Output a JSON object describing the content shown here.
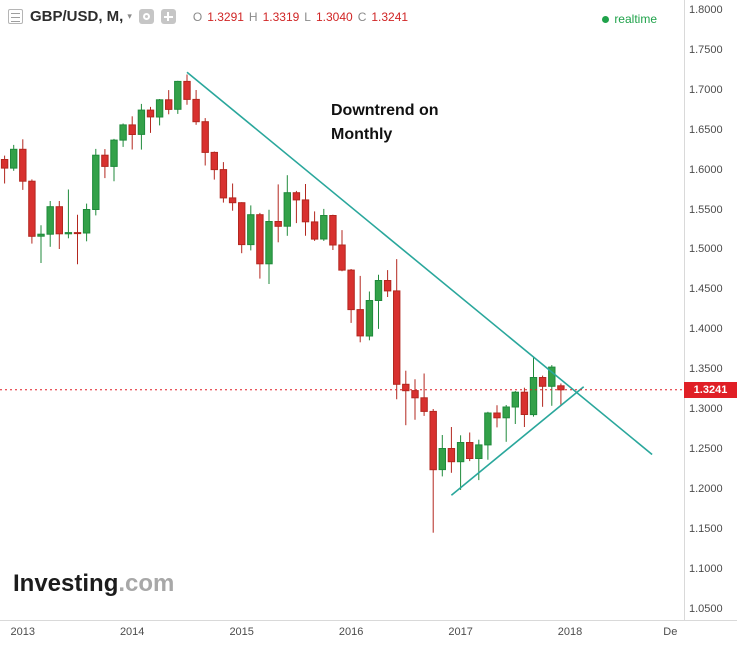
{
  "header": {
    "symbol_label": "GBP/USD, M,",
    "ohlc": [
      {
        "k": "O",
        "v": "1.3291"
      },
      {
        "k": "H",
        "v": "1.3319"
      },
      {
        "k": "L",
        "v": "1.3040"
      },
      {
        "k": "C",
        "v": "1.3241"
      }
    ],
    "realtime_label": "realtime"
  },
  "watermark": {
    "brand": "Investing",
    "suffix": ".com"
  },
  "colors": {
    "up_fill": "#33a149",
    "up_border": "#1f8a3b",
    "down_fill": "#d8312f",
    "down_border": "#b3271f",
    "trendline": "#2aa79c",
    "last_price": "#e01f26",
    "ohlc_value": "#d02525",
    "realtime": "#1fa24a",
    "axis_text": "#4c4c4c"
  },
  "chart_data": {
    "type": "candlestick",
    "symbol": "GBP/USD",
    "interval": "Monthly",
    "title": "GBP/USD, M,",
    "grid": false,
    "note": {
      "line1": "Downtrend on",
      "line2": "Monthly"
    },
    "price_axis": {
      "min": 1.05,
      "max": 1.8,
      "step": 0.05,
      "labels": [
        "1.8000",
        "1.7500",
        "1.7000",
        "1.6500",
        "1.6000",
        "1.5500",
        "1.5000",
        "1.4500",
        "1.4000",
        "1.3500",
        "1.3000",
        "1.2500",
        "1.2000",
        "1.1500",
        "1.1000",
        "1.0500"
      ]
    },
    "time_axis": {
      "start": "2012-11",
      "total_months": 75,
      "year_labels": [
        {
          "label": "2013",
          "month_index": 2
        },
        {
          "label": "2014",
          "month_index": 14
        },
        {
          "label": "2015",
          "month_index": 26
        },
        {
          "label": "2016",
          "month_index": 38
        },
        {
          "label": "2017",
          "month_index": 50
        },
        {
          "label": "2018",
          "month_index": 62
        },
        {
          "label": "De",
          "month_index": 73
        }
      ]
    },
    "last_price": {
      "value": "1.3241",
      "price": 1.3241
    },
    "ohlc_readout": {
      "open": 1.3291,
      "high": 1.3319,
      "low": 1.304,
      "close": 1.3241
    },
    "candles": [
      [
        "2012-11",
        1.6127,
        1.6175,
        1.5826,
        1.6019
      ],
      [
        "2012-12",
        1.6019,
        1.631,
        1.5985,
        1.6255
      ],
      [
        "2013-01",
        1.6255,
        1.638,
        1.5745,
        1.5855
      ],
      [
        "2013-02",
        1.5855,
        1.5877,
        1.5073,
        1.5165
      ],
      [
        "2013-03",
        1.5165,
        1.5302,
        1.483,
        1.519
      ],
      [
        "2013-04",
        1.519,
        1.5606,
        1.5032,
        1.5535
      ],
      [
        "2013-05",
        1.5535,
        1.5606,
        1.5005,
        1.5195
      ],
      [
        "2013-06",
        1.5195,
        1.5751,
        1.5139,
        1.521
      ],
      [
        "2013-07",
        1.521,
        1.5434,
        1.4813,
        1.5205
      ],
      [
        "2013-08",
        1.5205,
        1.5574,
        1.5101,
        1.55
      ],
      [
        "2013-09",
        1.55,
        1.626,
        1.5426,
        1.618
      ],
      [
        "2013-10",
        1.618,
        1.6257,
        1.5893,
        1.604
      ],
      [
        "2013-11",
        1.604,
        1.6385,
        1.5854,
        1.637
      ],
      [
        "2013-12",
        1.637,
        1.6578,
        1.6285,
        1.656
      ],
      [
        "2014-01",
        1.656,
        1.6668,
        1.6252,
        1.644
      ],
      [
        "2014-02",
        1.644,
        1.6823,
        1.6251,
        1.6745
      ],
      [
        "2014-03",
        1.6745,
        1.6786,
        1.646,
        1.666
      ],
      [
        "2014-04",
        1.666,
        1.6885,
        1.6554,
        1.6875
      ],
      [
        "2014-05",
        1.6875,
        1.6996,
        1.6693,
        1.6755
      ],
      [
        "2014-06",
        1.6755,
        1.7113,
        1.6698,
        1.7105
      ],
      [
        "2014-07",
        1.7105,
        1.7192,
        1.6813,
        1.688
      ],
      [
        "2014-08",
        1.688,
        1.6997,
        1.6561,
        1.66
      ],
      [
        "2014-09",
        1.66,
        1.6645,
        1.6051,
        1.6215
      ],
      [
        "2014-10",
        1.6215,
        1.6227,
        1.5875,
        1.6
      ],
      [
        "2014-11",
        1.6,
        1.6094,
        1.5587,
        1.5645
      ],
      [
        "2014-12",
        1.5645,
        1.5826,
        1.5485,
        1.5585
      ],
      [
        "2015-01",
        1.5585,
        1.5592,
        1.4952,
        1.506
      ],
      [
        "2015-02",
        1.506,
        1.5552,
        1.4987,
        1.5435
      ],
      [
        "2015-03",
        1.5435,
        1.5458,
        1.4634,
        1.482
      ],
      [
        "2015-04",
        1.482,
        1.5498,
        1.4566,
        1.535
      ],
      [
        "2015-05",
        1.535,
        1.5815,
        1.5089,
        1.529
      ],
      [
        "2015-06",
        1.529,
        1.593,
        1.517,
        1.571
      ],
      [
        "2015-07",
        1.571,
        1.5733,
        1.533,
        1.562
      ],
      [
        "2015-08",
        1.562,
        1.5819,
        1.517,
        1.5345
      ],
      [
        "2015-09",
        1.5345,
        1.5476,
        1.5107,
        1.513
      ],
      [
        "2015-10",
        1.513,
        1.5507,
        1.5107,
        1.5425
      ],
      [
        "2015-11",
        1.5425,
        1.5435,
        1.4992,
        1.5055
      ],
      [
        "2015-12",
        1.5055,
        1.5242,
        1.4725,
        1.474
      ],
      [
        "2016-01",
        1.474,
        1.4755,
        1.4079,
        1.4245
      ],
      [
        "2016-02",
        1.4245,
        1.4668,
        1.3836,
        1.3915
      ],
      [
        "2016-03",
        1.3915,
        1.4473,
        1.3861,
        1.436
      ],
      [
        "2016-04",
        1.436,
        1.4683,
        1.4004,
        1.461
      ],
      [
        "2016-05",
        1.461,
        1.474,
        1.4404,
        1.448
      ],
      [
        "2016-06",
        1.448,
        1.4879,
        1.3121,
        1.331
      ],
      [
        "2016-07",
        1.331,
        1.348,
        1.2797,
        1.323
      ],
      [
        "2016-08",
        1.323,
        1.3372,
        1.2866,
        1.314
      ],
      [
        "2016-09",
        1.314,
        1.3445,
        1.2914,
        1.297
      ],
      [
        "2016-10",
        1.297,
        1.3,
        1.145,
        1.224
      ],
      [
        "2016-11",
        1.224,
        1.2674,
        1.2155,
        1.2505
      ],
      [
        "2016-12",
        1.2505,
        1.2775,
        1.2201,
        1.234
      ],
      [
        "2017-01",
        1.234,
        1.267,
        1.1986,
        1.258
      ],
      [
        "2017-02",
        1.258,
        1.2706,
        1.2347,
        1.238
      ],
      [
        "2017-03",
        1.238,
        1.2615,
        1.2109,
        1.255
      ],
      [
        "2017-04",
        1.255,
        1.2965,
        1.2365,
        1.295
      ],
      [
        "2017-05",
        1.295,
        1.3047,
        1.2769,
        1.289
      ],
      [
        "2017-06",
        1.289,
        1.305,
        1.2589,
        1.3025
      ],
      [
        "2017-07",
        1.3025,
        1.3226,
        1.2812,
        1.321
      ],
      [
        "2017-08",
        1.321,
        1.3267,
        1.2774,
        1.293
      ],
      [
        "2017-09",
        1.293,
        1.3657,
        1.2905,
        1.3395
      ],
      [
        "2017-10",
        1.3395,
        1.3419,
        1.3027,
        1.3285
      ],
      [
        "2017-11",
        1.3285,
        1.355,
        1.304,
        1.3525
      ],
      [
        "2017-12",
        1.3291,
        1.3319,
        1.304,
        1.3241
      ]
    ],
    "trendlines": [
      {
        "name": "downtrend-line",
        "from_month_index": 20,
        "from_price": 1.722,
        "to_month_index": 71,
        "to_price": 1.243
      },
      {
        "name": "uptrend-line",
        "from_month_index": 49,
        "from_price": 1.192,
        "to_month_index": 63.5,
        "to_price": 1.328
      }
    ]
  }
}
